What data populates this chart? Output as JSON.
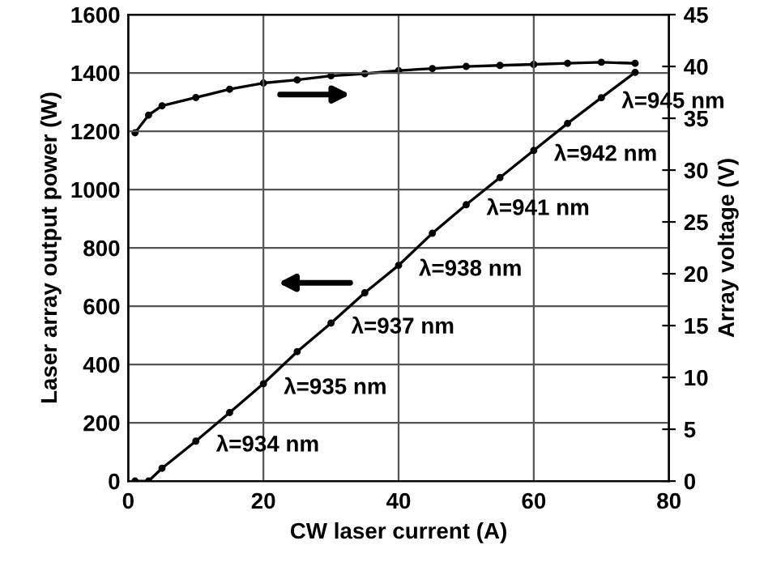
{
  "chart_data": {
    "type": "line",
    "xlabel": "CW laser current (A)",
    "ylabel": "Laser array output power (W)",
    "y2label": "Array voltage (V)",
    "xlim": [
      0,
      80
    ],
    "xticks": [
      0,
      20,
      40,
      60,
      80
    ],
    "ylim": [
      0,
      1600
    ],
    "yticks": [
      0,
      200,
      400,
      600,
      800,
      1000,
      1200,
      1400,
      1600
    ],
    "y2lim": [
      0,
      45
    ],
    "y2ticks": [
      0,
      5,
      10,
      15,
      20,
      25,
      30,
      35,
      40,
      45
    ],
    "grid": true,
    "marker": "circle",
    "line_style": "solid",
    "series": [
      {
        "color": "#000000",
        "x": [
          1,
          3,
          5,
          10,
          15,
          20,
          25,
          30,
          35,
          40,
          45,
          50,
          55,
          60,
          65,
          70,
          75
        ],
        "values": [
          0,
          0,
          44,
          137,
          235,
          334,
          444,
          542,
          646,
          740,
          850,
          948,
          1041,
          1134,
          1227,
          1315,
          1402
        ]
      },
      {
        "color": "#000000",
        "axis": "y2",
        "x": [
          1,
          3,
          5,
          10,
          15,
          20,
          25,
          30,
          35,
          40,
          45,
          50,
          55,
          60,
          65,
          70,
          75
        ],
        "values": [
          33.6,
          35.3,
          36.2,
          37.0,
          37.8,
          38.4,
          38.7,
          39.1,
          39.3,
          39.6,
          39.8,
          40.0,
          40.1,
          40.2,
          40.3,
          40.4,
          40.3
        ]
      }
    ],
    "annotations": [
      {
        "text": "λ=934 nm",
        "x": 10,
        "y": 137
      },
      {
        "text": "λ=935 nm",
        "x": 20,
        "y": 334
      },
      {
        "text": "λ=937 nm",
        "x": 30,
        "y": 542
      },
      {
        "text": "λ=938 nm",
        "x": 40,
        "y": 740
      },
      {
        "text": "λ=941 nm",
        "x": 50,
        "y": 948
      },
      {
        "text": "λ=942 nm",
        "x": 60,
        "y": 1134
      },
      {
        "text": "λ=945 nm",
        "x": 70,
        "y": 1315
      }
    ]
  }
}
